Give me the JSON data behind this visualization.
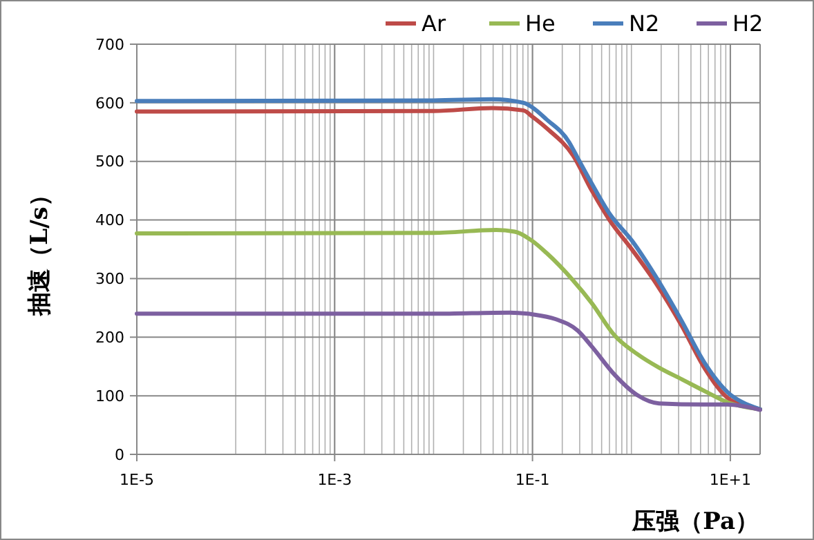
{
  "chart_data": {
    "type": "line",
    "xlabel": "压强（Pa）",
    "ylabel": "抽速（L/s）",
    "log": "x",
    "grid": true,
    "legend": "top right",
    "line_style": "solid",
    "xlim": [
      1e-05,
      20
    ],
    "ylim": [
      0,
      700
    ],
    "xticks": [
      {
        "value": 1e-05,
        "label": "1E-5"
      },
      {
        "value": 0.001,
        "label": "1E-3"
      },
      {
        "value": 0.1,
        "label": "1E-1"
      },
      {
        "value": 10,
        "label": "1E+1"
      }
    ],
    "yticks": [
      0,
      100,
      200,
      300,
      400,
      500,
      600,
      700
    ],
    "series": [
      {
        "name": "Ar",
        "color": "#be4b48",
        "x": [
          1e-05,
          0.01,
          0.039,
          0.081,
          0.1,
          0.138,
          0.257,
          0.398,
          0.6,
          1.02,
          1.74,
          3.24,
          5.5,
          10,
          20
        ],
        "values": [
          585,
          586,
          591,
          587,
          576,
          557,
          510,
          450,
          400,
          349,
          294,
          219,
          147,
          93,
          77
        ]
      },
      {
        "name": "He",
        "color": "#98b954",
        "x": [
          1e-05,
          0.01,
          0.043,
          0.066,
          0.1,
          0.138,
          0.257,
          0.398,
          0.676,
          1.15,
          1.9,
          3.24,
          5.5,
          9.3,
          20
        ],
        "values": [
          377,
          378,
          383,
          380,
          364,
          344,
          297,
          258,
          203,
          171,
          148,
          128,
          108,
          89,
          77
        ]
      },
      {
        "name": "N2",
        "color": "#4a7ebb",
        "x": [
          1e-05,
          0.01,
          0.039,
          0.081,
          0.1,
          0.138,
          0.234,
          0.288,
          0.398,
          0.6,
          1.02,
          1.74,
          3.24,
          5.5,
          10,
          12.9,
          20
        ],
        "values": [
          603,
          604,
          606,
          600,
          592,
          572,
          533,
          505,
          462,
          411,
          364,
          305,
          227,
          156,
          102,
          90,
          77
        ]
      },
      {
        "name": "H2",
        "color": "#7d60a0",
        "x": [
          1e-05,
          0.01,
          0.059,
          0.1,
          0.17,
          0.288,
          0.398,
          0.676,
          1.15,
          1.9,
          5.5,
          9.3,
          20
        ],
        "values": [
          240,
          240,
          242,
          239,
          231,
          211,
          184,
          136,
          101,
          87,
          85,
          85,
          76
        ]
      }
    ]
  }
}
